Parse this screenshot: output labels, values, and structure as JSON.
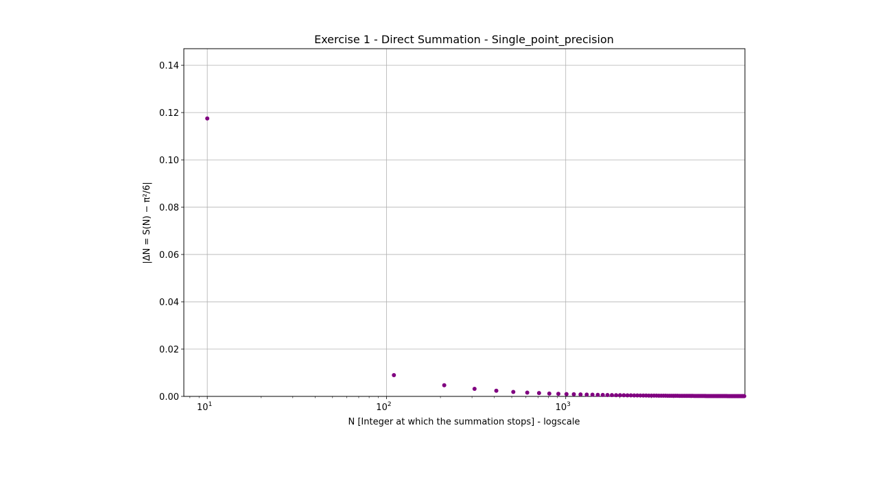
{
  "chart_data": {
    "type": "scatter",
    "title": "Exercise 1 - Direct Summation - Single_point_precision",
    "xlabel": "N [Integer at which the summation stops] - logscale",
    "ylabel": "|ΔN = S(N) − π²/6|",
    "x_scale": "log",
    "xlim": [
      7.4,
      10000
    ],
    "ylim": [
      0,
      0.147
    ],
    "grid": true,
    "marker_color": "#800080",
    "x_ticks": [
      {
        "value": 10,
        "base": "10",
        "exp": "1"
      },
      {
        "value": 100,
        "base": "10",
        "exp": "2"
      },
      {
        "value": 1000,
        "base": "10",
        "exp": "3"
      }
    ],
    "y_ticks": [
      "0.00",
      "0.02",
      "0.04",
      "0.06",
      "0.08",
      "0.10",
      "0.12",
      "0.14"
    ],
    "points": [
      [
        10,
        0.1175
      ],
      [
        110,
        0.009
      ],
      [
        210,
        0.0047
      ],
      [
        310,
        0.0032
      ],
      [
        410,
        0.0024
      ],
      [
        510,
        0.0019
      ],
      [
        610,
        0.0016
      ],
      [
        710,
        0.0014
      ],
      [
        810,
        0.0012
      ],
      [
        910,
        0.0011
      ],
      [
        1010,
        0.00099
      ],
      [
        1110,
        0.0009
      ],
      [
        1210,
        0.00082
      ],
      [
        1310,
        0.00076
      ],
      [
        1410,
        0.00071
      ],
      [
        1510,
        0.00066
      ],
      [
        1610,
        0.00062
      ],
      [
        1710,
        0.00058
      ],
      [
        1810,
        0.00055
      ],
      [
        1910,
        0.00052
      ],
      [
        2010,
        0.0005
      ],
      [
        2110,
        0.00047
      ],
      [
        2210,
        0.00045
      ],
      [
        2310,
        0.00043
      ],
      [
        2410,
        0.00041
      ],
      [
        2510,
        0.0004
      ],
      [
        2610,
        0.00038
      ],
      [
        2710,
        0.00037
      ],
      [
        2810,
        0.00036
      ],
      [
        2910,
        0.00034
      ],
      [
        3010,
        0.00033
      ],
      [
        3110,
        0.00032
      ],
      [
        3210,
        0.00031
      ],
      [
        3310,
        0.0003
      ],
      [
        3410,
        0.00029
      ],
      [
        3510,
        0.00028
      ],
      [
        3610,
        0.00028
      ],
      [
        3710,
        0.00027
      ],
      [
        3810,
        0.00026
      ],
      [
        3910,
        0.00026
      ],
      [
        4010,
        0.00025
      ],
      [
        4110,
        0.00024
      ],
      [
        4210,
        0.00024
      ],
      [
        4310,
        0.00023
      ],
      [
        4410,
        0.00023
      ],
      [
        4510,
        0.00022
      ],
      [
        4610,
        0.00022
      ],
      [
        4710,
        0.00021
      ],
      [
        4810,
        0.00021
      ],
      [
        4910,
        0.0002
      ],
      [
        5010,
        0.0002
      ],
      [
        5110,
        0.0002
      ],
      [
        5210,
        0.00019
      ],
      [
        5310,
        0.00019
      ],
      [
        5410,
        0.00018
      ],
      [
        5510,
        0.00018
      ],
      [
        5610,
        0.00018
      ],
      [
        5710,
        0.00018
      ],
      [
        5810,
        0.00017
      ],
      [
        5910,
        0.00017
      ],
      [
        6010,
        0.00017
      ],
      [
        6110,
        0.00016
      ],
      [
        6210,
        0.00016
      ],
      [
        6310,
        0.00016
      ],
      [
        6410,
        0.00016
      ],
      [
        6510,
        0.00015
      ],
      [
        6610,
        0.00015
      ],
      [
        6710,
        0.00015
      ],
      [
        6810,
        0.00015
      ],
      [
        6910,
        0.00014
      ],
      [
        7010,
        0.00014
      ],
      [
        7110,
        0.00014
      ],
      [
        7210,
        0.00014
      ],
      [
        7310,
        0.00014
      ],
      [
        7410,
        0.00013
      ],
      [
        7510,
        0.00013
      ],
      [
        7610,
        0.00013
      ],
      [
        7710,
        0.00013
      ],
      [
        7810,
        0.00013
      ],
      [
        7910,
        0.00013
      ],
      [
        8010,
        0.00012
      ],
      [
        8110,
        0.00012
      ],
      [
        8210,
        0.00012
      ],
      [
        8310,
        0.00012
      ],
      [
        8410,
        0.00012
      ],
      [
        8510,
        0.00012
      ],
      [
        8610,
        0.00012
      ],
      [
        8710,
        0.00011
      ],
      [
        8810,
        0.00011
      ],
      [
        8910,
        0.00011
      ],
      [
        9010,
        0.00011
      ],
      [
        9110,
        0.00011
      ],
      [
        9210,
        0.00011
      ],
      [
        9310,
        0.00011
      ],
      [
        9410,
        0.00011
      ],
      [
        9510,
        0.00011
      ],
      [
        9610,
        0.0001
      ],
      [
        9710,
        0.0001
      ],
      [
        9810,
        0.0001
      ],
      [
        9910,
        0.0001
      ]
    ]
  }
}
